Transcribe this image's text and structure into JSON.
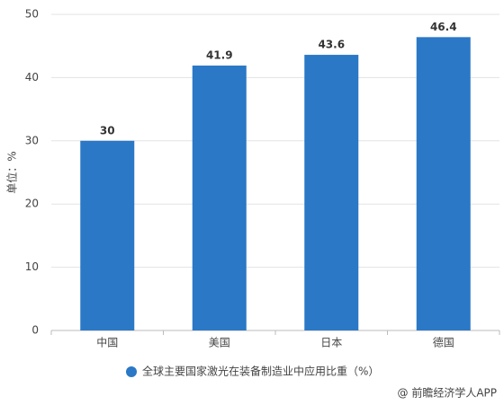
{
  "chart_data": {
    "type": "bar",
    "y_label": "单位：%",
    "categories": [
      "中国",
      "美国",
      "日本",
      "德国"
    ],
    "series": [
      {
        "name": "全球主要国家激光在装备制造业中应用比重（%）",
        "color": "#2a78c6",
        "values": [
          30,
          41.9,
          43.6,
          46.4
        ]
      }
    ],
    "ylim": [
      0,
      50
    ],
    "yticks": [
      0,
      10,
      20,
      30,
      40,
      50
    ],
    "grid": true,
    "source": "@ 前瞻经济学人APP"
  }
}
